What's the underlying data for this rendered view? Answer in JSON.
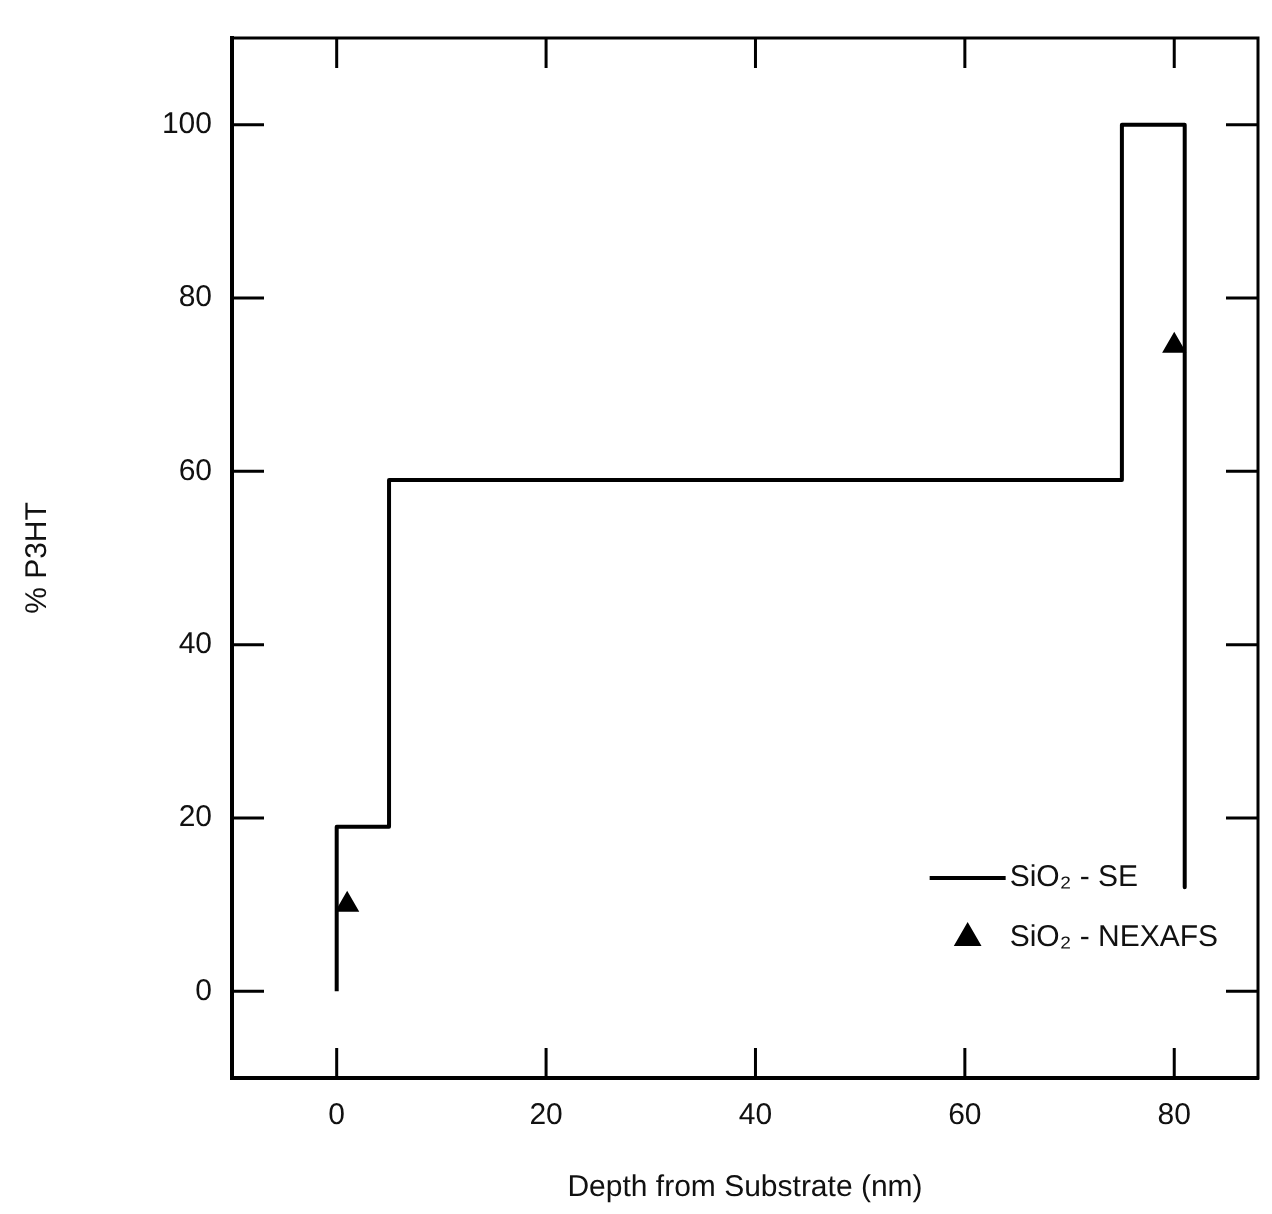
{
  "chart_data": {
    "type": "line",
    "xlabel": "Depth from Substrate (nm)",
    "ylabel": "% P3HT",
    "xlim": [
      -10,
      88
    ],
    "xticks": [
      0,
      20,
      40,
      60,
      80
    ],
    "ylim": [
      -10,
      110
    ],
    "yticks": [
      0,
      20,
      40,
      60,
      80,
      100
    ],
    "grid": false,
    "legend": "bottom right",
    "series": [
      {
        "name": "SiO₂ - SE",
        "color": "#000000",
        "line_style": "solid",
        "marker": "none",
        "x": [
          0,
          0,
          5,
          5,
          75,
          75,
          81,
          81
        ],
        "values": [
          0,
          19,
          19,
          59,
          59,
          100,
          100,
          12
        ]
      },
      {
        "name": "SiO₂ - NEXAFS",
        "type": "scatter",
        "color": "#000000",
        "marker": "triangle",
        "x": [
          1,
          80
        ],
        "values": [
          10,
          74.5
        ]
      }
    ]
  }
}
